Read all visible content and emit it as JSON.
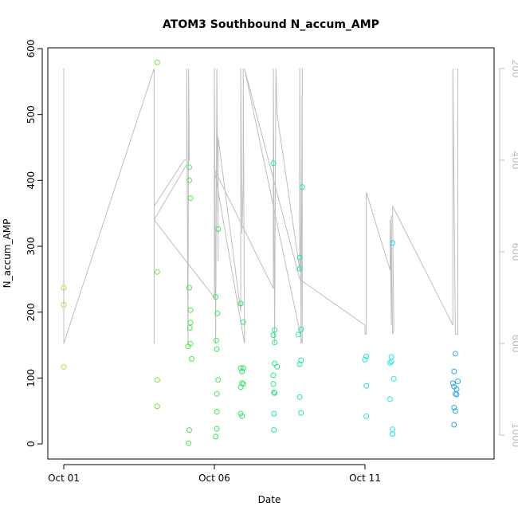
{
  "chart_data": {
    "type": "scatter",
    "title": "ATOM3 Southbound N_accum_AMP",
    "xlabel": "Date",
    "ylabel": "N_accum_AMP",
    "x_type": "date",
    "xlim": [
      "2023-10-01",
      "2023-10-15"
    ],
    "ylim": [
      0,
      600
    ],
    "y_ticks": [
      0,
      100,
      200,
      300,
      400,
      500,
      600
    ],
    "x_ticks": [
      {
        "date": "2023-10-01",
        "label": "Oct 01"
      },
      {
        "date": "2023-10-06",
        "label": "Oct 06"
      },
      {
        "date": "2023-10-11",
        "label": "Oct 11"
      }
    ],
    "y2": {
      "reversed": true,
      "ylim": [
        1000,
        200
      ],
      "ticks": [
        200,
        400,
        600,
        800,
        1000
      ],
      "color": "#bebebe"
    },
    "grid": false,
    "legend": "none",
    "points": [
      {
        "x": "2023-10-01 00:00",
        "y": 237,
        "color": "#9de64a"
      },
      {
        "x": "2023-10-01 00:00",
        "y": 211,
        "color": "#9de64a"
      },
      {
        "x": "2023-10-01 00:00",
        "y": 117,
        "color": "#9de64a"
      },
      {
        "x": "2023-10-04 02:30",
        "y": 579,
        "color": "#6ee63a"
      },
      {
        "x": "2023-10-04 02:30",
        "y": 261,
        "color": "#6ee63a"
      },
      {
        "x": "2023-10-04 02:30",
        "y": 97,
        "color": "#6ee63a"
      },
      {
        "x": "2023-10-04 02:30",
        "y": 57,
        "color": "#6ee63a"
      },
      {
        "x": "2023-10-05 04:00",
        "y": 420,
        "color": "#4ee64a"
      },
      {
        "x": "2023-10-05 04:00",
        "y": 400,
        "color": "#4ee64a"
      },
      {
        "x": "2023-10-05 05:00",
        "y": 373,
        "color": "#4ee64a"
      },
      {
        "x": "2023-10-05 04:00",
        "y": 237,
        "color": "#4ee64a"
      },
      {
        "x": "2023-10-05 05:00",
        "y": 203,
        "color": "#4ee64a"
      },
      {
        "x": "2023-10-05 05:00",
        "y": 184,
        "color": "#4ee64a"
      },
      {
        "x": "2023-10-05 04:30",
        "y": 176,
        "color": "#4ee64a"
      },
      {
        "x": "2023-10-05 05:00",
        "y": 152,
        "color": "#4ee64a"
      },
      {
        "x": "2023-10-05 03:00",
        "y": 148,
        "color": "#4ee64a"
      },
      {
        "x": "2023-10-05 06:00",
        "y": 129,
        "color": "#4ee64a"
      },
      {
        "x": "2023-10-05 04:00",
        "y": 21,
        "color": "#4ee64a"
      },
      {
        "x": "2023-10-05 03:30",
        "y": 1,
        "color": "#4ee64a"
      },
      {
        "x": "2023-10-06 03:00",
        "y": 326,
        "color": "#3ee65a"
      },
      {
        "x": "2023-10-06 01:00",
        "y": 223,
        "color": "#3ee65a"
      },
      {
        "x": "2023-10-06 02:30",
        "y": 198,
        "color": "#3ee65a"
      },
      {
        "x": "2023-10-06 01:30",
        "y": 157,
        "color": "#3ee65a"
      },
      {
        "x": "2023-10-06 02:00",
        "y": 144,
        "color": "#3ee65a"
      },
      {
        "x": "2023-10-06 03:00",
        "y": 97,
        "color": "#3ee65a"
      },
      {
        "x": "2023-10-06 02:00",
        "y": 76,
        "color": "#3ee65a"
      },
      {
        "x": "2023-10-06 02:00",
        "y": 49,
        "color": "#3ee65a"
      },
      {
        "x": "2023-10-06 02:00",
        "y": 23,
        "color": "#3ee65a"
      },
      {
        "x": "2023-10-06 01:00",
        "y": 11,
        "color": "#3ee65a"
      },
      {
        "x": "2023-10-06 21:00",
        "y": 213,
        "color": "#30e66e"
      },
      {
        "x": "2023-10-06 23:00",
        "y": 185,
        "color": "#30e66e"
      },
      {
        "x": "2023-10-06 21:00",
        "y": 115,
        "color": "#30e66e"
      },
      {
        "x": "2023-10-06 22:00",
        "y": 110,
        "color": "#30e66e"
      },
      {
        "x": "2023-10-06 23:00",
        "y": 115,
        "color": "#30e66e"
      },
      {
        "x": "2023-10-06 22:00",
        "y": 92,
        "color": "#30e66e"
      },
      {
        "x": "2023-10-06 23:00",
        "y": 91,
        "color": "#30e66e"
      },
      {
        "x": "2023-10-06 21:00",
        "y": 86,
        "color": "#30e66e"
      },
      {
        "x": "2023-10-06 21:00",
        "y": 46,
        "color": "#30e66e"
      },
      {
        "x": "2023-10-06 22:00",
        "y": 42,
        "color": "#30e66e"
      },
      {
        "x": "2023-10-07 23:00",
        "y": 426,
        "color": "#2ae68a"
      },
      {
        "x": "2023-10-08 00:00",
        "y": 173,
        "color": "#2ae68a"
      },
      {
        "x": "2023-10-07 23:00",
        "y": 165,
        "color": "#2ae68a"
      },
      {
        "x": "2023-10-08 00:00",
        "y": 154,
        "color": "#2ae68a"
      },
      {
        "x": "2023-10-08 00:00",
        "y": 122,
        "color": "#2ae68a"
      },
      {
        "x": "2023-10-08 02:00",
        "y": 117,
        "color": "#2ae68a"
      },
      {
        "x": "2023-10-07 23:00",
        "y": 104,
        "color": "#2ae68a"
      },
      {
        "x": "2023-10-07 23:00",
        "y": 91,
        "color": "#2ae68a"
      },
      {
        "x": "2023-10-07 23:30",
        "y": 78,
        "color": "#2ae68a"
      },
      {
        "x": "2023-10-08 00:00",
        "y": 77,
        "color": "#2ae68a"
      },
      {
        "x": "2023-10-07 23:30",
        "y": 46,
        "color": "#2ae68a"
      },
      {
        "x": "2023-10-07 23:30",
        "y": 21,
        "color": "#2ae68a"
      },
      {
        "x": "2023-10-08 22:00",
        "y": 390,
        "color": "#22e6a8"
      },
      {
        "x": "2023-10-08 20:00",
        "y": 283,
        "color": "#22e6a8"
      },
      {
        "x": "2023-10-08 20:00",
        "y": 266,
        "color": "#22e6a8"
      },
      {
        "x": "2023-10-08 21:00",
        "y": 174,
        "color": "#22e6a8"
      },
      {
        "x": "2023-10-08 19:00",
        "y": 166,
        "color": "#22e6a8"
      },
      {
        "x": "2023-10-08 21:00",
        "y": 127,
        "color": "#22e6a8"
      },
      {
        "x": "2023-10-08 20:00",
        "y": 121,
        "color": "#22e6a8"
      },
      {
        "x": "2023-10-08 20:00",
        "y": 71,
        "color": "#22e6a8"
      },
      {
        "x": "2023-10-08 21:00",
        "y": 47,
        "color": "#22e6a8"
      },
      {
        "x": "2023-10-11 01:00",
        "y": 133,
        "color": "#1ee6d8"
      },
      {
        "x": "2023-10-11 00:00",
        "y": 128,
        "color": "#1ee6d8"
      },
      {
        "x": "2023-10-11 01:00",
        "y": 88,
        "color": "#1ee6d8"
      },
      {
        "x": "2023-10-11 01:00",
        "y": 42,
        "color": "#1ee6d8"
      },
      {
        "x": "2023-10-11 22:00",
        "y": 305,
        "color": "#1ee6e6"
      },
      {
        "x": "2023-10-11 21:00",
        "y": 132,
        "color": "#1ee6e6"
      },
      {
        "x": "2023-10-11 20:00",
        "y": 123,
        "color": "#1ee6e6"
      },
      {
        "x": "2023-10-11 21:00",
        "y": 125,
        "color": "#1ee6e6"
      },
      {
        "x": "2023-10-11 23:00",
        "y": 99,
        "color": "#1ee6e6"
      },
      {
        "x": "2023-10-11 20:00",
        "y": 68,
        "color": "#1ee6e6"
      },
      {
        "x": "2023-10-11 22:00",
        "y": 22,
        "color": "#1ee6e6"
      },
      {
        "x": "2023-10-11 22:00",
        "y": 15,
        "color": "#1ee6e6"
      },
      {
        "x": "2023-10-14 00:00",
        "y": 137,
        "color": "#2ea8e6"
      },
      {
        "x": "2023-10-13 23:00",
        "y": 110,
        "color": "#2ea8e6"
      },
      {
        "x": "2023-10-14 02:00",
        "y": 95,
        "color": "#2ea8e6"
      },
      {
        "x": "2023-10-13 22:00",
        "y": 92,
        "color": "#2ea8e6"
      },
      {
        "x": "2023-10-13 23:00",
        "y": 87,
        "color": "#2ea8e6"
      },
      {
        "x": "2023-10-14 01:00",
        "y": 83,
        "color": "#2ea8e6"
      },
      {
        "x": "2023-10-14 00:00",
        "y": 76,
        "color": "#2ea8e6"
      },
      {
        "x": "2023-10-14 01:00",
        "y": 75,
        "color": "#2ea8e6"
      },
      {
        "x": "2023-10-13 23:00",
        "y": 55,
        "color": "#2ea8e6"
      },
      {
        "x": "2023-10-14 00:00",
        "y": 50,
        "color": "#2ea8e6"
      },
      {
        "x": "2023-10-13 23:00",
        "y": 29,
        "color": "#2ea8e6"
      }
    ],
    "y2_series": {
      "color": "#bebebe",
      "points": [
        [
          "2023-10-01 00:00",
          200
        ],
        [
          "2023-10-01 00:00",
          800
        ],
        [
          "2023-10-04 00:00",
          200
        ],
        [
          "2023-10-04 00:00",
          800
        ],
        [
          "2023-10-04 00:00",
          500
        ],
        [
          "2023-10-05 00:00",
          400
        ],
        [
          "2023-10-05 02:00",
          400
        ],
        [
          "2023-10-05 02:00",
          200
        ],
        [
          "2023-10-05 03:00",
          800
        ],
        [
          "2023-10-05 03:30",
          200
        ],
        [
          "2023-10-05 04:00",
          400
        ],
        [
          "2023-10-04 00:00",
          530
        ],
        [
          "2023-10-06 00:00",
          700
        ],
        [
          "2023-10-06 00:00",
          200
        ],
        [
          "2023-10-06 01:00",
          800
        ],
        [
          "2023-10-06 02:00",
          200
        ],
        [
          "2023-10-06 03:00",
          620
        ],
        [
          "2023-10-06 03:00",
          350
        ],
        [
          "2023-10-06 21:00",
          730
        ],
        [
          "2023-10-06 21:00",
          200
        ],
        [
          "2023-10-06 22:00",
          560
        ],
        [
          "2023-10-06 23:00",
          450
        ],
        [
          "2023-10-06 23:00",
          200
        ],
        [
          "2023-10-07 00:00",
          800
        ],
        [
          "2023-10-06 00:00",
          420
        ],
        [
          "2023-10-07 23:00",
          680
        ],
        [
          "2023-10-07 23:00",
          200
        ],
        [
          "2023-10-08 00:00",
          800
        ],
        [
          "2023-10-08 01:00",
          200
        ],
        [
          "2023-10-08 02:00",
          300
        ],
        [
          "2023-10-08 20:00",
          640
        ],
        [
          "2023-10-08 20:00",
          200
        ],
        [
          "2023-10-08 21:00",
          800
        ],
        [
          "2023-10-08 22:00",
          200
        ],
        [
          "2023-10-08 22:00",
          800
        ],
        [
          "2023-10-07 00:00",
          200
        ],
        [
          "2023-10-08 20:00",
          660
        ],
        [
          "2023-10-11 00:00",
          760
        ],
        [
          "2023-10-11 00:00",
          780
        ],
        [
          "2023-10-11 01:00",
          780
        ],
        [
          "2023-10-11 01:00",
          470
        ],
        [
          "2023-10-11 20:00",
          640
        ],
        [
          "2023-10-11 20:00",
          530
        ],
        [
          "2023-10-11 21:00",
          760
        ],
        [
          "2023-10-11 21:00",
          520
        ],
        [
          "2023-10-11 22:00",
          780
        ],
        [
          "2023-10-11 23:00",
          770
        ],
        [
          "2023-10-11 22:00",
          500
        ],
        [
          "2023-10-13 22:00",
          760
        ],
        [
          "2023-10-13 22:00",
          200
        ],
        [
          "2023-10-14 00:00",
          780
        ],
        [
          "2023-10-14 02:00",
          780
        ],
        [
          "2023-10-14 02:00",
          200
        ]
      ]
    }
  }
}
